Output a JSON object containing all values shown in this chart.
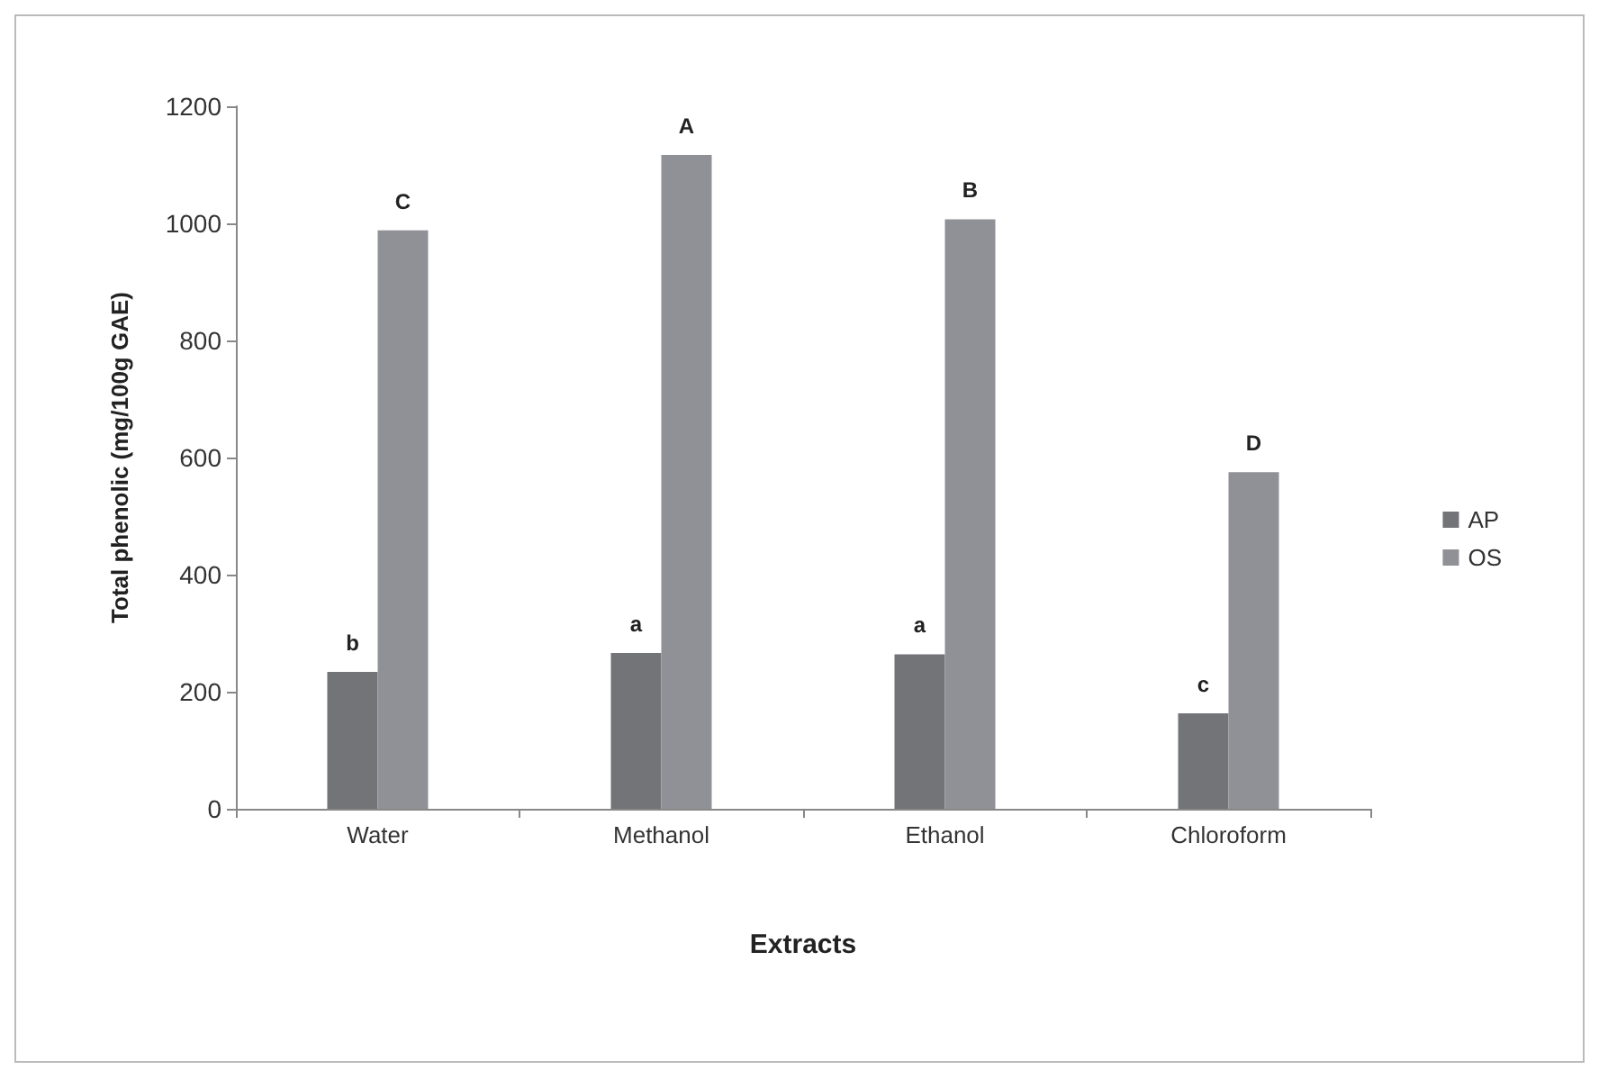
{
  "chart_data": {
    "type": "bar",
    "xlabel": "Extracts",
    "ylabel": "Total phenolic (mg/100g GAE)",
    "categories": [
      "Water",
      "Methanol",
      "Ethanol",
      "Chloroform"
    ],
    "series": [
      {
        "name": "AP",
        "color": "#737478",
        "values": [
          234,
          266,
          264,
          163
        ]
      },
      {
        "name": "OS",
        "color": "#909196",
        "values": [
          988,
          1117,
          1007,
          575
        ]
      }
    ],
    "ylim": [
      0,
      1200
    ],
    "yticks": [
      0,
      200,
      400,
      600,
      800,
      1000,
      1200
    ],
    "grid": false,
    "legend": "right",
    "annotations": [
      {
        "text": "b",
        "x": "Water",
        "y": 234
      },
      {
        "text": "C",
        "x": "Water",
        "y": 988
      },
      {
        "text": "a",
        "x": "Methanol",
        "y": 266
      },
      {
        "text": "A",
        "x": "Methanol",
        "y": 1117
      },
      {
        "text": "a",
        "x": "Ethanol",
        "y": 264
      },
      {
        "text": "B",
        "x": "Ethanol",
        "y": 1007
      },
      {
        "text": "c",
        "x": "Chloroform",
        "y": 163
      },
      {
        "text": "D",
        "x": "Chloroform",
        "y": 575
      }
    ]
  }
}
